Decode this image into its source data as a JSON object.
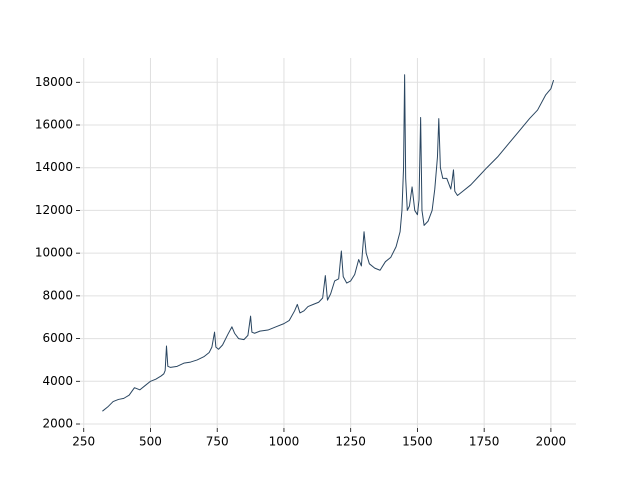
{
  "chart_data": {
    "type": "line",
    "color": "#2a4661",
    "grid": true,
    "x": [
      320,
      340,
      360,
      380,
      400,
      420,
      440,
      460,
      480,
      500,
      520,
      540,
      550,
      555,
      560,
      565,
      575,
      600,
      625,
      650,
      675,
      700,
      720,
      730,
      740,
      745,
      755,
      770,
      790,
      805,
      815,
      830,
      850,
      865,
      875,
      880,
      890,
      910,
      940,
      970,
      1000,
      1020,
      1040,
      1050,
      1060,
      1075,
      1090,
      1110,
      1130,
      1145,
      1155,
      1163,
      1175,
      1190,
      1205,
      1215,
      1222,
      1235,
      1250,
      1265,
      1280,
      1290,
      1300,
      1308,
      1320,
      1340,
      1360,
      1380,
      1400,
      1420,
      1435,
      1442,
      1448,
      1452,
      1456,
      1462,
      1470,
      1480,
      1490,
      1500,
      1506,
      1512,
      1517,
      1525,
      1540,
      1555,
      1565,
      1575,
      1580,
      1586,
      1595,
      1610,
      1625,
      1630,
      1635,
      1640,
      1650,
      1670,
      1700,
      1730,
      1760,
      1800,
      1840,
      1880,
      1920,
      1950,
      1980,
      2000,
      2010
    ],
    "values": [
      2600,
      2800,
      3050,
      3150,
      3200,
      3350,
      3700,
      3600,
      3800,
      4000,
      4100,
      4250,
      4350,
      4500,
      5650,
      4700,
      4650,
      4700,
      4850,
      4900,
      5000,
      5150,
      5350,
      5600,
      6300,
      5600,
      5500,
      5700,
      6200,
      6550,
      6250,
      6000,
      5950,
      6150,
      7050,
      6300,
      6250,
      6350,
      6400,
      6550,
      6700,
      6850,
      7300,
      7600,
      7200,
      7300,
      7500,
      7600,
      7700,
      7900,
      8950,
      7800,
      8100,
      8700,
      8800,
      10100,
      8900,
      8600,
      8700,
      9000,
      9700,
      9400,
      11000,
      10000,
      9500,
      9300,
      9200,
      9600,
      9800,
      10300,
      11000,
      12000,
      14000,
      18350,
      13500,
      12000,
      12200,
      13100,
      12000,
      11800,
      12500,
      16350,
      12000,
      11300,
      11500,
      12000,
      13000,
      14500,
      16300,
      14000,
      13500,
      13500,
      13000,
      13400,
      13900,
      12900,
      12700,
      12900,
      13200,
      13600,
      14000,
      14500,
      15100,
      15700,
      16300,
      16700,
      17400,
      17700,
      18100
    ],
    "xlim": [
      236,
      2094
    ],
    "xticks": [
      250,
      500,
      750,
      1000,
      1250,
      1500,
      1750,
      2000
    ],
    "ylim": [
      1813,
      19137
    ],
    "yticks": [
      2000,
      4000,
      6000,
      8000,
      10000,
      12000,
      14000,
      16000,
      18000
    ]
  }
}
